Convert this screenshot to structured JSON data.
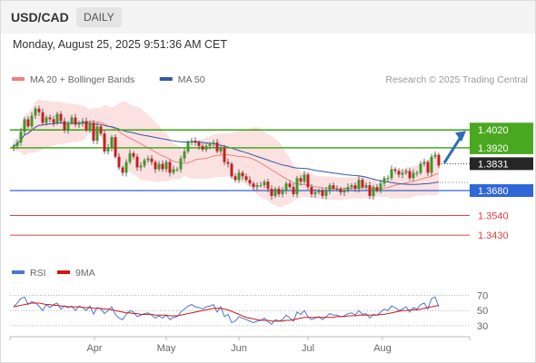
{
  "header": {
    "symbol": "USD/CAD",
    "timeframe": "DAILY",
    "timestamp": "Monday, August 25, 2025 9:51:36 AM CET"
  },
  "chart_data": [
    {
      "type": "candlestick",
      "legend": [
        {
          "label": "MA 20 + Bollinger Bands",
          "color": "#f08080"
        },
        {
          "label": "MA 50",
          "color": "#2e5aa8"
        }
      ],
      "legend_placement": "top-left",
      "credit": "Research © 2025 Trading Central",
      "x_tick_labels": [
        "Apr",
        "May",
        "Jun",
        "Jul",
        "Aug"
      ],
      "ylim": [
        1.3395,
        1.4235
      ],
      "current_price": "1.3831",
      "price_levels": [
        {
          "label": "1.4020",
          "value": 1.402,
          "kind": "resistance",
          "color": "#4aa820"
        },
        {
          "label": "1.3920",
          "value": 1.392,
          "kind": "resistance",
          "color": "#4aa820"
        },
        {
          "label": "1.3680",
          "value": 1.368,
          "kind": "pivot",
          "color": "#2f66d8"
        },
        {
          "label": "1.3540",
          "value": 1.354,
          "kind": "support",
          "color": "#e24040"
        },
        {
          "label": "1.3430",
          "value": 1.343,
          "kind": "support",
          "color": "#e24040"
        }
      ],
      "forecast_arrow": {
        "from": 1.3835,
        "to": 1.402,
        "color": "#2f6db5"
      },
      "close_series": [
        1.393,
        1.395,
        1.401,
        1.408,
        1.404,
        1.41,
        1.414,
        1.412,
        1.406,
        1.409,
        1.408,
        1.406,
        1.411,
        1.407,
        1.402,
        1.406,
        1.409,
        1.405,
        1.406,
        1.407,
        1.402,
        1.406,
        1.396,
        1.404,
        1.4,
        1.39,
        1.392,
        1.398,
        1.387,
        1.381,
        1.378,
        1.384,
        1.389,
        1.387,
        1.381,
        1.382,
        1.385,
        1.386,
        1.384,
        1.38,
        1.383,
        1.38,
        1.384,
        1.378,
        1.38,
        1.38,
        1.386,
        1.39,
        1.395,
        1.396,
        1.395,
        1.393,
        1.391,
        1.393,
        1.394,
        1.395,
        1.39,
        1.392,
        1.384,
        1.383,
        1.376,
        1.374,
        1.378,
        1.376,
        1.374,
        1.372,
        1.37,
        1.371,
        1.371,
        1.373,
        1.369,
        1.365,
        1.369,
        1.366,
        1.368,
        1.372,
        1.37,
        1.366,
        1.375,
        1.373,
        1.377,
        1.37,
        1.366,
        1.367,
        1.368,
        1.365,
        1.368,
        1.371,
        1.369,
        1.369,
        1.367,
        1.368,
        1.37,
        1.371,
        1.369,
        1.374,
        1.37,
        1.371,
        1.365,
        1.37,
        1.368,
        1.372,
        1.375,
        1.375,
        1.38,
        1.379,
        1.377,
        1.378,
        1.379,
        1.375,
        1.378,
        1.378,
        1.383,
        1.384,
        1.378,
        1.387,
        1.388,
        1.382
      ]
    },
    {
      "type": "line",
      "legend": [
        {
          "label": "RSI",
          "color": "#4a78d0"
        },
        {
          "label": "9MA",
          "color": "#d01818"
        }
      ],
      "ylim": [
        25,
        78
      ],
      "y_tick_labels": [
        "70",
        "50",
        "30"
      ],
      "series": [
        {
          "name": "RSI",
          "values": [
            55,
            60,
            66,
            68,
            58,
            62,
            60,
            56,
            50,
            58,
            54,
            58,
            60,
            52,
            56,
            54,
            56,
            50,
            56,
            54,
            50,
            56,
            45,
            54,
            52,
            46,
            50,
            55,
            45,
            40,
            38,
            45,
            50,
            48,
            42,
            44,
            46,
            47,
            44,
            40,
            43,
            40,
            44,
            38,
            41,
            42,
            48,
            52,
            56,
            58,
            55,
            54,
            52,
            55,
            56,
            58,
            48,
            55,
            42,
            45,
            34,
            36,
            42,
            40,
            38,
            36,
            34,
            36,
            37,
            40,
            35,
            32,
            38,
            36,
            38,
            44,
            40,
            36,
            48,
            45,
            50,
            42,
            38,
            40,
            42,
            38,
            42,
            46,
            44,
            44,
            42,
            43,
            46,
            47,
            44,
            50,
            45,
            46,
            40,
            45,
            44,
            48,
            52,
            50,
            56,
            54,
            50,
            52,
            55,
            48,
            54,
            52,
            58,
            60,
            52,
            66,
            68,
            55
          ]
        },
        {
          "name": "9MA",
          "values": [
            55,
            56,
            57,
            58,
            59,
            60,
            60,
            60,
            59,
            58,
            58,
            57,
            57,
            56,
            56,
            55,
            55,
            55,
            55,
            54,
            54,
            54,
            53,
            53,
            53,
            52,
            52,
            51,
            50,
            49,
            48,
            47,
            47,
            46,
            46,
            45,
            45,
            45,
            45,
            44,
            44,
            44,
            44,
            43,
            43,
            43,
            44,
            45,
            46,
            47,
            48,
            49,
            50,
            51,
            52,
            53,
            53,
            53,
            52,
            51,
            49,
            47,
            45,
            43,
            41,
            40,
            39,
            38,
            37,
            37,
            37,
            36,
            36,
            36,
            36,
            37,
            37,
            38,
            39,
            40,
            41,
            41,
            41,
            41,
            41,
            41,
            41,
            41,
            41,
            42,
            42,
            42,
            43,
            43,
            43,
            44,
            44,
            44,
            44,
            44,
            44,
            45,
            45,
            46,
            47,
            48,
            49,
            50,
            50,
            51,
            51,
            51,
            52,
            53,
            54,
            55,
            56,
            57
          ]
        }
      ]
    }
  ]
}
